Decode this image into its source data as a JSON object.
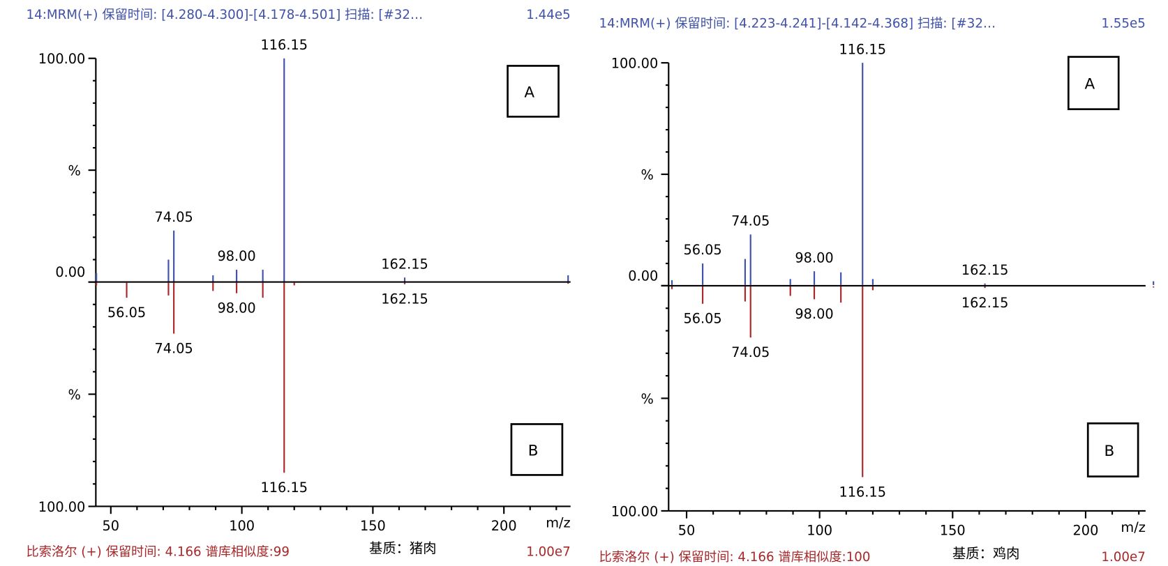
{
  "chart_data": [
    {
      "type": "bar",
      "title": "14:MRM(+) 保留时间: [4.280-4.300]-[4.178-4.501] 扫描: [#32…",
      "title_scale": "1.44e5",
      "xlabel": "m/z",
      "ylabel": "%",
      "xticks": [
        "50",
        "100",
        "150",
        "200"
      ],
      "xtick_values": [
        50,
        100,
        150,
        200
      ],
      "xlim": [
        44,
        225
      ],
      "ytick_top": "100.00",
      "ytick_zero": "0.00",
      "ytick_bottom": "100.00",
      "ylim": [
        0,
        100
      ],
      "box_top": "A",
      "box_bottom": "B",
      "series": [
        {
          "name": "A",
          "color": "#3f51a8",
          "peaks": [
            {
              "mz": 44.5,
              "value": 4
            },
            {
              "mz": 72,
              "value": 10
            },
            {
              "mz": 74.05,
              "value": 23,
              "label": "74.05"
            },
            {
              "mz": 89,
              "value": 3
            },
            {
              "mz": 98.0,
              "value": 5.5,
              "label": "98.00"
            },
            {
              "mz": 108,
              "value": 5.5
            },
            {
              "mz": 116.15,
              "value": 100,
              "label": "116.15"
            },
            {
              "mz": 162.15,
              "value": 2,
              "label": "162.15"
            },
            {
              "mz": 224.5,
              "value": 3
            }
          ]
        },
        {
          "name": "B",
          "color": "#a8282a",
          "peaks": [
            {
              "mz": 44.5,
              "value": 1.5
            },
            {
              "mz": 56.05,
              "value": 7,
              "label": "56.05"
            },
            {
              "mz": 72,
              "value": 6
            },
            {
              "mz": 74.05,
              "value": 23,
              "label": "74.05"
            },
            {
              "mz": 89,
              "value": 4
            },
            {
              "mz": 98.0,
              "value": 5,
              "label": "98.00"
            },
            {
              "mz": 108,
              "value": 7
            },
            {
              "mz": 116.15,
              "value": 85,
              "label": "116.15"
            },
            {
              "mz": 120,
              "value": 1.5
            },
            {
              "mz": 162.15,
              "value": 1,
              "label": "162.15"
            },
            {
              "mz": 224.5,
              "value": 0.8
            }
          ]
        }
      ],
      "footer": {
        "library": "比索洛尔 (+) 保留时间: 4.166 谱库相似度:99",
        "matrix": "基质：猪肉",
        "scale": "1.00e7"
      }
    },
    {
      "type": "bar",
      "title": "14:MRM(+) 保留时间: [4.223-4.241]-[4.142-4.368] 扫描: [#32…",
      "title_scale": "1.55e5",
      "xlabel": "m/z",
      "ylabel": "%",
      "xticks": [
        "50",
        "100",
        "150",
        "200"
      ],
      "xtick_values": [
        50,
        100,
        150,
        200
      ],
      "xlim": [
        43,
        226
      ],
      "ytick_top": "100.00",
      "ytick_zero": "0.00",
      "ytick_bottom": "100.00",
      "ylim": [
        0,
        100
      ],
      "box_top": "A",
      "box_bottom": "B",
      "series": [
        {
          "name": "A",
          "color": "#3f51a8",
          "peaks": [
            {
              "mz": 44.5,
              "value": 2.5
            },
            {
              "mz": 56.05,
              "value": 10,
              "label": "56.05"
            },
            {
              "mz": 72,
              "value": 12
            },
            {
              "mz": 74.05,
              "value": 23,
              "label": "74.05"
            },
            {
              "mz": 89,
              "value": 3
            },
            {
              "mz": 98.0,
              "value": 6.5,
              "label": "98.00"
            },
            {
              "mz": 108,
              "value": 6
            },
            {
              "mz": 116.15,
              "value": 100,
              "label": "116.15"
            },
            {
              "mz": 120,
              "value": 3
            },
            {
              "mz": 162.15,
              "value": 1,
              "label": "162.15"
            },
            {
              "mz": 225.5,
              "value": 2
            }
          ]
        },
        {
          "name": "B",
          "color": "#a8282a",
          "peaks": [
            {
              "mz": 44.5,
              "value": 1.5
            },
            {
              "mz": 56.05,
              "value": 8,
              "label": "56.05"
            },
            {
              "mz": 72,
              "value": 7
            },
            {
              "mz": 74.05,
              "value": 23,
              "label": "74.05"
            },
            {
              "mz": 89,
              "value": 4.5
            },
            {
              "mz": 98.0,
              "value": 6,
              "label": "98.00"
            },
            {
              "mz": 108,
              "value": 7.5
            },
            {
              "mz": 116.15,
              "value": 85,
              "label": "116.15"
            },
            {
              "mz": 120,
              "value": 2
            },
            {
              "mz": 162.15,
              "value": 1,
              "label": "162.15"
            },
            {
              "mz": 225.5,
              "value": 0.8
            }
          ]
        }
      ],
      "footer": {
        "library": "比索洛尔 (+) 保留时间: 4.166 谱库相似度:100",
        "matrix": "基质：鸡肉",
        "scale": "1.00e7"
      }
    }
  ]
}
